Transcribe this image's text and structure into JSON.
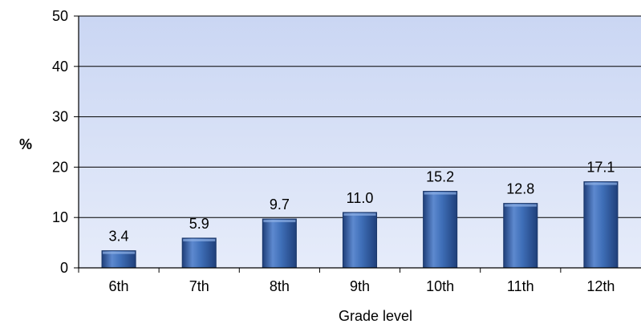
{
  "chart_data": {
    "type": "bar",
    "categories": [
      "6th",
      "7th",
      "8th",
      "9th",
      "10th",
      "11th",
      "12th"
    ],
    "values": [
      3.4,
      5.9,
      9.7,
      11.0,
      15.2,
      12.8,
      17.1
    ],
    "value_labels": [
      "3.4",
      "5.9",
      "9.7",
      "11.0",
      "15.2",
      "12.8",
      "17.1"
    ],
    "xlabel": "Grade level",
    "ylabel": "%",
    "ylim": [
      0,
      50
    ],
    "yticks": [
      "0",
      "10",
      "20",
      "30",
      "40",
      "50"
    ],
    "ytick_values": [
      0,
      10,
      20,
      30,
      40,
      50
    ],
    "grid": true,
    "legend": "none",
    "colors": {
      "bar_light": "#6f9ad8",
      "bar_mid": "#3f6fb8",
      "bar_dark": "#1f3f7a",
      "plot_bg_top": "#cad6f3",
      "plot_bg_bottom": "#e6ecfa",
      "gridline": "#000000"
    }
  }
}
